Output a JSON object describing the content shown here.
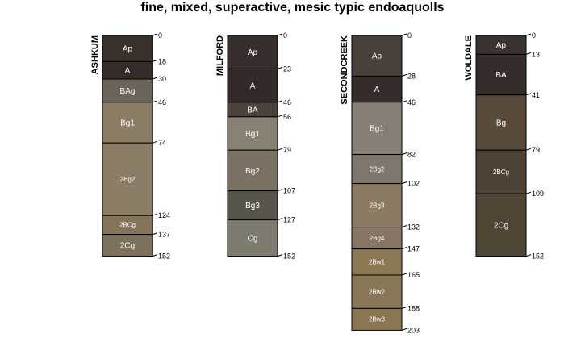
{
  "title": "fine, mixed, superactive, mesic typic endoaquolls",
  "profiles": [
    {
      "name": "ASHKUM",
      "horizons": [
        {
          "name": "Ap",
          "top": 0,
          "bottom": 18,
          "color": "#3a302b"
        },
        {
          "name": "A",
          "top": 18,
          "bottom": 30,
          "color": "#332c28"
        },
        {
          "name": "BAg",
          "top": 30,
          "bottom": 46,
          "color": "#6b6559"
        },
        {
          "name": "Bg1",
          "top": 46,
          "bottom": 74,
          "color": "#8b7d65"
        },
        {
          "name": "2Bg2",
          "top": 74,
          "bottom": 124,
          "color": "#8c7e66"
        },
        {
          "name": "2BCg",
          "top": 124,
          "bottom": 137,
          "color": "#857558"
        },
        {
          "name": "2Cg",
          "top": 137,
          "bottom": 152,
          "color": "#7e715c"
        }
      ],
      "depth_labels": [
        "0",
        "18",
        "30",
        "46",
        "74",
        "124",
        "137",
        "152"
      ]
    },
    {
      "name": "MILFORD",
      "horizons": [
        {
          "name": "Ap",
          "top": 0,
          "bottom": 23,
          "color": "#362f2c"
        },
        {
          "name": "A",
          "top": 23,
          "bottom": 46,
          "color": "#322b28"
        },
        {
          "name": "BA",
          "top": 46,
          "bottom": 56,
          "color": "#4b433d"
        },
        {
          "name": "Bg1",
          "top": 56,
          "bottom": 79,
          "color": "#868173"
        },
        {
          "name": "Bg2",
          "top": 79,
          "bottom": 107,
          "color": "#7b7263"
        },
        {
          "name": "Bg3",
          "top": 107,
          "bottom": 127,
          "color": "#5a554a"
        },
        {
          "name": "Cg",
          "top": 127,
          "bottom": 152,
          "color": "#7f7c6f"
        }
      ],
      "depth_labels": [
        "0",
        "23",
        "46",
        "56",
        "79",
        "107",
        "127",
        "152"
      ]
    },
    {
      "name": "SECONDCREEK",
      "horizons": [
        {
          "name": "Ap",
          "top": 0,
          "bottom": 28,
          "color": "#4a403a"
        },
        {
          "name": "A",
          "top": 28,
          "bottom": 46,
          "color": "#342d2a"
        },
        {
          "name": "Bg1",
          "top": 46,
          "bottom": 82,
          "color": "#858073"
        },
        {
          "name": "2Bg2",
          "top": 82,
          "bottom": 102,
          "color": "#7d786b"
        },
        {
          "name": "2Bg3",
          "top": 102,
          "bottom": 132,
          "color": "#8a7b62"
        },
        {
          "name": "2Bg4",
          "top": 132,
          "bottom": 147,
          "color": "#877663"
        },
        {
          "name": "2Bw1",
          "top": 147,
          "bottom": 165,
          "color": "#8d7854"
        },
        {
          "name": "2Bw2",
          "top": 165,
          "bottom": 188,
          "color": "#8a7757"
        },
        {
          "name": "2Bw3",
          "top": 188,
          "bottom": 203,
          "color": "#8b7654"
        }
      ],
      "depth_labels": [
        "0",
        "28",
        "46",
        "82",
        "102",
        "132",
        "147",
        "165",
        "188",
        "203"
      ]
    },
    {
      "name": "WOLDALE",
      "horizons": [
        {
          "name": "Ap",
          "top": 0,
          "bottom": 13,
          "color": "#3b332f"
        },
        {
          "name": "BA",
          "top": 13,
          "bottom": 41,
          "color": "#342d29"
        },
        {
          "name": "Bg",
          "top": 41,
          "bottom": 79,
          "color": "#574a3b"
        },
        {
          "name": "2BCg",
          "top": 79,
          "bottom": 109,
          "color": "#4f4335"
        },
        {
          "name": "2Cg",
          "top": 109,
          "bottom": 152,
          "color": "#4f4535"
        }
      ],
      "depth_labels": [
        "0",
        "13",
        "41",
        "79",
        "109",
        "152"
      ]
    }
  ]
}
